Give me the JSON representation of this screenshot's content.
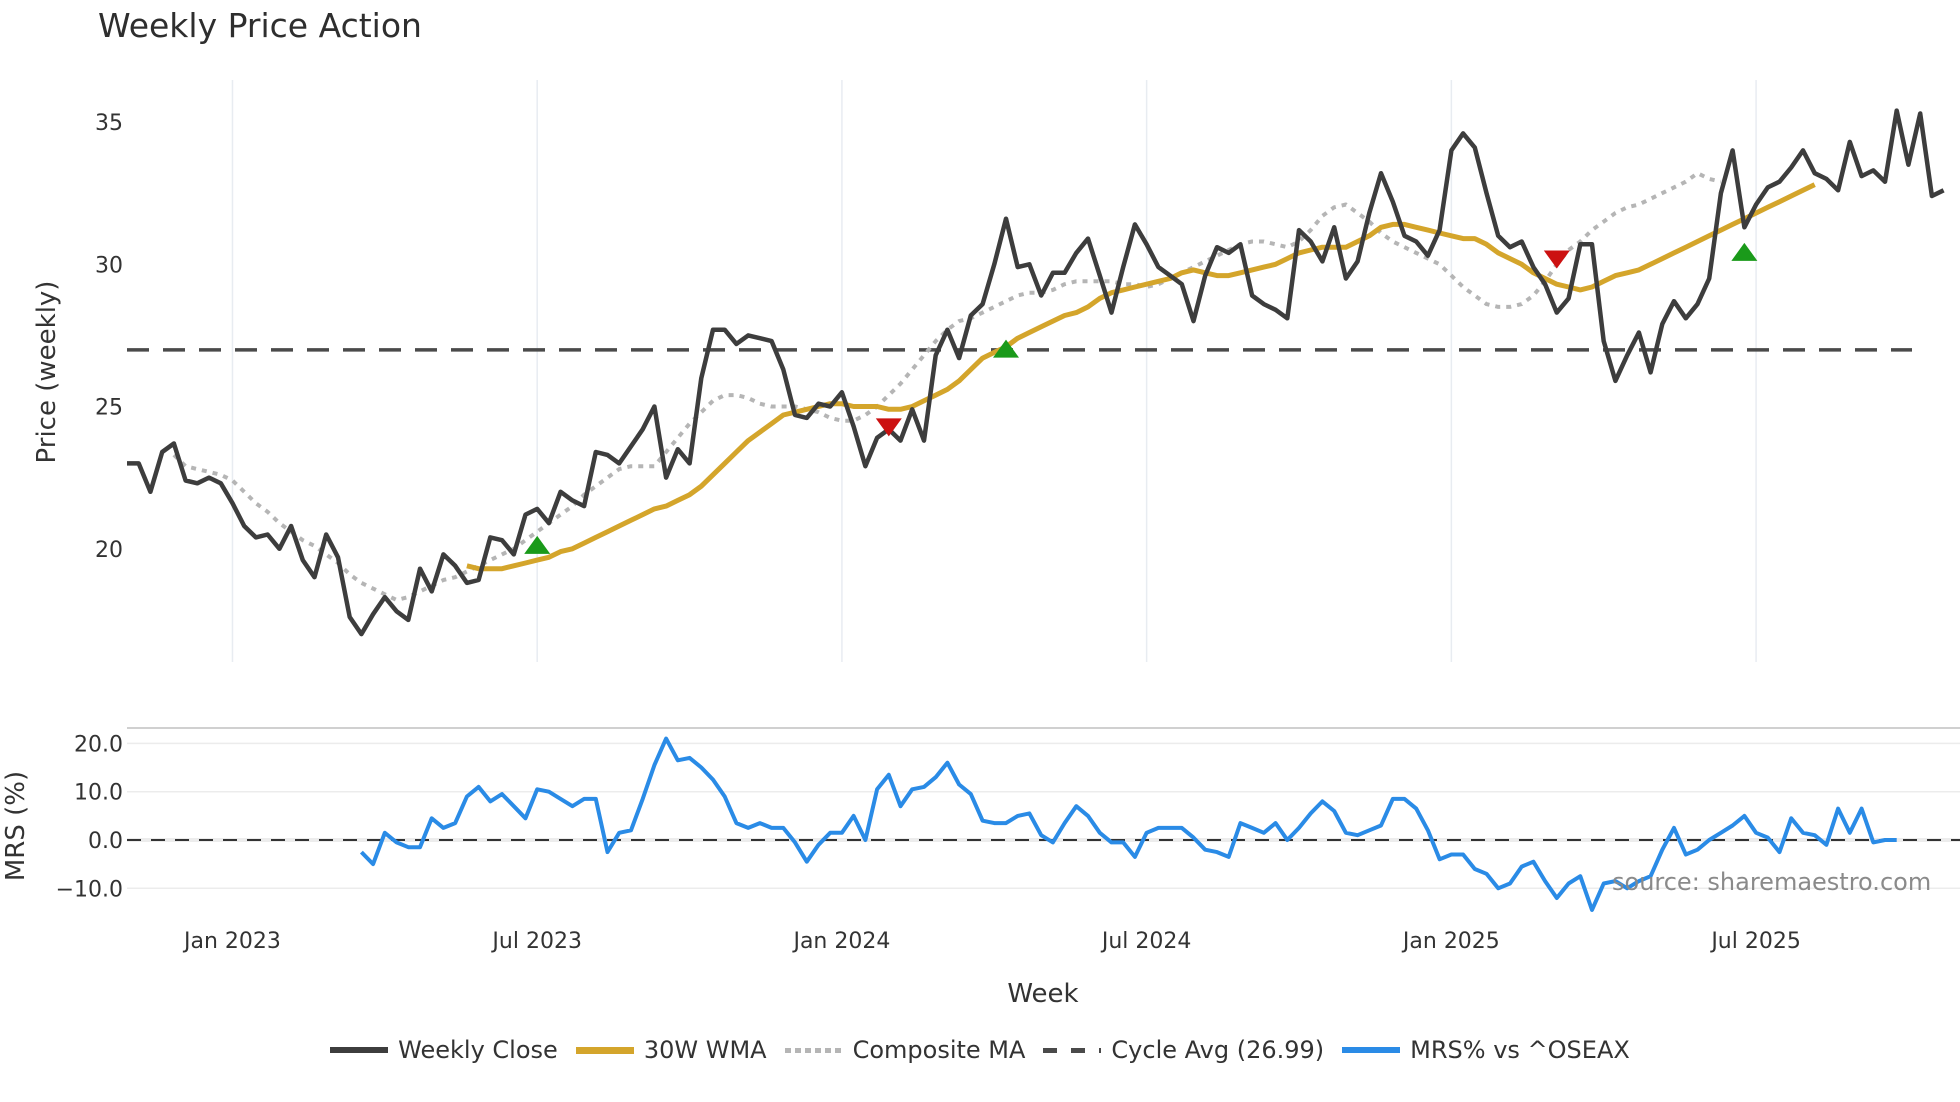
{
  "title": "Weekly Price Action",
  "source_note": "source: sharemaestro.com",
  "legend": [
    {
      "label": "Weekly Close",
      "color": "#3d3d3d",
      "style": "solid"
    },
    {
      "label": "30W WMA",
      "color": "#d4a52b",
      "style": "solid"
    },
    {
      "label": "Composite MA",
      "color": "#b5b5b5",
      "style": "dotted"
    },
    {
      "label": "Cycle Avg (26.99)",
      "color": "#4a4a4a",
      "style": "dashed"
    },
    {
      "label": "MRS% vs ^OSEAX",
      "color": "#2a8be6",
      "style": "solid"
    }
  ],
  "chart_data": [
    {
      "type": "line",
      "title": "Weekly Price Action",
      "xlabel": "Week",
      "ylabel": "Price (weekly)",
      "ylim": [
        16,
        36.5
      ],
      "yticks": [
        20,
        25,
        30,
        35
      ],
      "x_tick_labels": [
        "Jan 2023",
        "Jul 2023",
        "Jan 2024",
        "Jul 2024",
        "Jan 2025",
        "Jul 2025"
      ],
      "x_tick_week_index": [
        9,
        35,
        61,
        87,
        113,
        139
      ],
      "grid": {
        "vertical": true,
        "horizontal": false
      },
      "cycle_avg": 26.99,
      "series": [
        {
          "name": "Weekly Close",
          "color": "#3d3d3d",
          "start_index": 0,
          "values": [
            23.0,
            23.0,
            22.0,
            23.4,
            23.7,
            22.4,
            22.3,
            22.5,
            22.3,
            21.6,
            20.8,
            20.4,
            20.5,
            20.0,
            20.8,
            19.6,
            19.0,
            20.5,
            19.7,
            17.6,
            17.0,
            17.7,
            18.3,
            17.8,
            17.5,
            19.3,
            18.5,
            19.8,
            19.4,
            18.8,
            18.9,
            20.4,
            20.3,
            19.8,
            21.2,
            21.4,
            20.9,
            22.0,
            21.7,
            21.5,
            23.4,
            23.3,
            23.0,
            23.6,
            24.2,
            25.0,
            22.5,
            23.5,
            23.0,
            26.0,
            27.7,
            27.7,
            27.2,
            27.5,
            27.4,
            27.3,
            26.3,
            24.7,
            24.6,
            25.1,
            25.0,
            25.5,
            24.3,
            22.9,
            23.9,
            24.2,
            23.8,
            24.9,
            23.8,
            26.8,
            27.7,
            26.7,
            28.2,
            28.6,
            30.0,
            31.6,
            29.9,
            30.0,
            28.9,
            29.7,
            29.7,
            30.4,
            30.9,
            29.6,
            28.3,
            29.9,
            31.4,
            30.7,
            29.9,
            29.6,
            29.3,
            28.0,
            29.6,
            30.6,
            30.4,
            30.7,
            28.9,
            28.6,
            28.4,
            28.1,
            31.2,
            30.8,
            30.1,
            31.3,
            29.5,
            30.1,
            31.8,
            33.2,
            32.2,
            31.0,
            30.8,
            30.3,
            31.2,
            34.0,
            34.6,
            34.1,
            32.5,
            31.0,
            30.6,
            30.8,
            29.9,
            29.3,
            28.3,
            28.8,
            30.7,
            30.7,
            27.3,
            25.9,
            26.8,
            27.6,
            26.2,
            27.9,
            28.7,
            28.1,
            28.6,
            29.5,
            32.5,
            34.0,
            31.3,
            32.1,
            32.7,
            32.9,
            33.4,
            34.0,
            33.2,
            33.0,
            32.6,
            34.3,
            33.1,
            33.3,
            32.9,
            35.4,
            33.5,
            35.3,
            32.4,
            32.6
          ]
        },
        {
          "name": "30W WMA",
          "color": "#d4a52b",
          "start_index": 29,
          "values": [
            19.4,
            19.3,
            19.3,
            19.3,
            19.4,
            19.5,
            19.6,
            19.7,
            19.9,
            20.0,
            20.2,
            20.4,
            20.6,
            20.8,
            21.0,
            21.2,
            21.4,
            21.5,
            21.7,
            21.9,
            22.2,
            22.6,
            23.0,
            23.4,
            23.8,
            24.1,
            24.4,
            24.7,
            24.8,
            24.9,
            25.0,
            25.1,
            25.1,
            25.0,
            25.0,
            25.0,
            24.9,
            24.9,
            25.0,
            25.2,
            25.4,
            25.6,
            25.9,
            26.3,
            26.7,
            26.9,
            27.1,
            27.4,
            27.6,
            27.8,
            28.0,
            28.2,
            28.3,
            28.5,
            28.8,
            29.0,
            29.1,
            29.2,
            29.3,
            29.4,
            29.5,
            29.7,
            29.8,
            29.7,
            29.6,
            29.6,
            29.7,
            29.8,
            29.9,
            30.0,
            30.2,
            30.4,
            30.5,
            30.6,
            30.6,
            30.6,
            30.8,
            31.0,
            31.3,
            31.4,
            31.4,
            31.3,
            31.2,
            31.1,
            31.0,
            30.9,
            30.9,
            30.7,
            30.4,
            30.2,
            30.0,
            29.7,
            29.5,
            29.3,
            29.2,
            29.1,
            29.2,
            29.4,
            29.6,
            29.7,
            29.8,
            30.0,
            30.2,
            30.4,
            30.6,
            30.8,
            31.0,
            31.2,
            31.4,
            31.6,
            31.8,
            32.0,
            32.2,
            32.4,
            32.6,
            32.8
          ]
        },
        {
          "name": "Composite MA",
          "color": "#b5b5b5",
          "start_index": 4,
          "values": [
            23.3,
            22.9,
            22.8,
            22.7,
            22.6,
            22.4,
            22.0,
            21.6,
            21.3,
            20.9,
            20.6,
            20.3,
            20.1,
            19.8,
            19.5,
            19.1,
            18.8,
            18.6,
            18.4,
            18.2,
            18.3,
            18.5,
            18.7,
            18.9,
            19.0,
            19.2,
            19.4,
            19.6,
            19.8,
            20.0,
            20.3,
            20.6,
            20.9,
            21.2,
            21.5,
            21.9,
            22.2,
            22.5,
            22.8,
            22.9,
            22.9,
            22.9,
            23.4,
            23.9,
            24.4,
            24.8,
            25.2,
            25.4,
            25.4,
            25.3,
            25.1,
            25.0,
            25.0,
            25.0,
            24.9,
            24.8,
            24.6,
            24.5,
            24.5,
            24.7,
            25.0,
            25.4,
            25.8,
            26.3,
            26.8,
            27.3,
            27.7,
            28.0,
            28.1,
            28.3,
            28.5,
            28.7,
            28.9,
            29.0,
            29.0,
            29.1,
            29.3,
            29.4,
            29.4,
            29.4,
            29.4,
            29.3,
            29.3,
            29.2,
            29.3,
            29.5,
            29.7,
            29.9,
            30.1,
            30.3,
            30.5,
            30.7,
            30.8,
            30.8,
            30.7,
            30.6,
            30.8,
            31.2,
            31.7,
            32.0,
            32.1,
            31.8,
            31.5,
            31.1,
            30.8,
            30.6,
            30.4,
            30.2,
            30.0,
            29.6,
            29.2,
            28.9,
            28.6,
            28.5,
            28.5,
            28.6,
            28.9,
            29.4,
            30.0,
            30.5,
            30.8,
            31.2,
            31.5,
            31.8,
            32.0,
            32.1,
            32.3,
            32.5,
            32.7,
            32.9,
            33.2,
            33.0,
            32.9
          ]
        },
        {
          "name": "Cycle Avg (26.99)",
          "color": "#4a4a4a",
          "style": "dashed",
          "constant": 26.99
        }
      ],
      "markers": [
        {
          "type": "buy",
          "shape": "triangle-up",
          "color": "#1a9a1a",
          "index": 35,
          "value": 20.1
        },
        {
          "type": "sell",
          "shape": "triangle-down",
          "color": "#cc1111",
          "index": 65,
          "value": 24.3
        },
        {
          "type": "buy",
          "shape": "triangle-up",
          "color": "#1a9a1a",
          "index": 75,
          "value": 27.0
        },
        {
          "type": "sell",
          "shape": "triangle-down",
          "color": "#cc1111",
          "index": 122,
          "value": 30.2
        },
        {
          "type": "buy",
          "shape": "triangle-up",
          "color": "#1a9a1a",
          "index": 138,
          "value": 30.4
        }
      ]
    },
    {
      "type": "line",
      "title": "",
      "xlabel": "Week",
      "ylabel": "MRS (%)",
      "ylim": [
        -13,
        23
      ],
      "yticks": [
        -10.0,
        0.0,
        10.0,
        20.0
      ],
      "ytick_labels": [
        "−10.0",
        "0.0",
        "10.0",
        "20.0"
      ],
      "zero_line": {
        "value": 0,
        "style": "dashed",
        "color": "#333333"
      },
      "series": [
        {
          "name": "MRS% vs ^OSEAX",
          "color": "#2a8be6",
          "start_index": 20,
          "values": [
            -2.5,
            -5.0,
            1.5,
            -0.5,
            -1.5,
            -1.5,
            4.5,
            2.5,
            3.5,
            9.0,
            11.0,
            8.0,
            9.5,
            7.0,
            4.5,
            10.5,
            10.0,
            8.5,
            7.0,
            8.5,
            8.5,
            -2.5,
            1.5,
            2.0,
            8.5,
            15.5,
            21.0,
            16.5,
            17.0,
            15.0,
            12.5,
            9.0,
            3.5,
            2.5,
            3.5,
            2.5,
            2.5,
            -0.5,
            -4.5,
            -1.0,
            1.5,
            1.5,
            5.0,
            0.0,
            10.5,
            13.5,
            7.0,
            10.5,
            11.0,
            13.0,
            16.0,
            11.5,
            9.5,
            4.0,
            3.5,
            3.5,
            5.0,
            5.5,
            1.0,
            -0.5,
            3.5,
            7.0,
            5.0,
            1.5,
            -0.5,
            -0.5,
            -3.5,
            1.5,
            2.5,
            2.5,
            2.5,
            0.5,
            -2.0,
            -2.5,
            -3.5,
            3.5,
            2.5,
            1.5,
            3.5,
            0.0,
            2.5,
            5.5,
            8.0,
            6.0,
            1.5,
            1.0,
            2.0,
            3.0,
            8.5,
            8.5,
            6.5,
            2.0,
            -4.0,
            -3.0,
            -3.0,
            -6.0,
            -7.0,
            -10.0,
            -9.0,
            -5.5,
            -4.5,
            -8.5,
            -12.0,
            -9.0,
            -7.5,
            -14.5,
            -9.0,
            -8.5,
            -10.0,
            -8.5,
            -7.5,
            -2.0,
            2.5,
            -3.0,
            -2.0,
            0.0,
            1.5,
            3.0,
            5.0,
            1.5,
            0.5,
            -2.5,
            4.5,
            1.5,
            1.0,
            -1.0,
            6.5,
            1.5,
            6.5,
            -0.5,
            0.0,
            0.0
          ]
        }
      ]
    }
  ],
  "axes": {
    "price_ylabel": "Price (weekly)",
    "mrs_ylabel": "MRS (%)",
    "xlabel": "Week"
  }
}
